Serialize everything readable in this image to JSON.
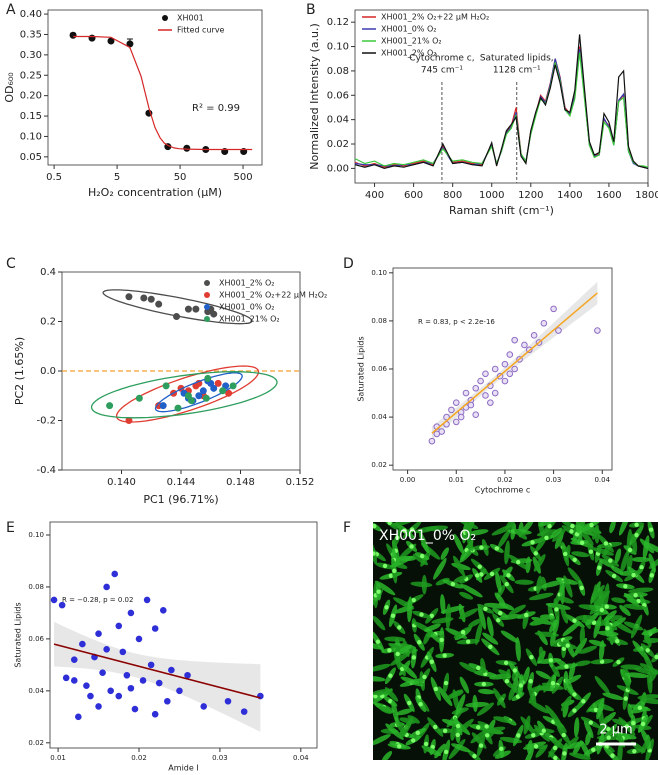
{
  "chart_data": [
    {
      "type": "scatter",
      "panel": "A",
      "xlabel": "H₂O₂ concentration (μM)",
      "ylabel": "OD₆₀₀",
      "log_x": true,
      "xlim": [
        0.4,
        1000
      ],
      "xticks": [
        0.5,
        5,
        50,
        500
      ],
      "ylim": [
        0.03,
        0.41
      ],
      "yticks": [
        0.05,
        {
          "value": 0.1,
          "label": "0.10"
        },
        0.15,
        {
          "value": 0.2,
          "label": "0.20"
        },
        0.25,
        {
          "value": 0.3,
          "label": "0.30"
        },
        0.35,
        {
          "value": 0.4,
          "label": "0.40"
        }
      ],
      "annotations": [
        {
          "text": "R² = 0.99"
        }
      ],
      "series": [
        {
          "name": "XH001",
          "type": "scatter",
          "color": "#111111",
          "x": [
            1,
            2,
            4,
            8,
            16,
            32,
            64,
            128,
            256,
            512
          ],
          "values": [
            0.348,
            0.341,
            0.334,
            0.327,
            0.157,
            0.075,
            0.071,
            0.068,
            0.063,
            0.063
          ],
          "errors": [
            0.005,
            0.004,
            0.003,
            0.012,
            0.004,
            0.002,
            0.002,
            0.002,
            0.002,
            0.002
          ]
        },
        {
          "name": "Fitted curve",
          "type": "line",
          "color": "#d62728",
          "x": [
            1,
            2,
            4,
            8,
            12,
            16,
            20,
            24,
            28,
            32,
            40,
            48,
            64,
            128,
            256,
            512,
            700
          ],
          "values": [
            0.345,
            0.345,
            0.343,
            0.318,
            0.248,
            0.17,
            0.122,
            0.097,
            0.084,
            0.078,
            0.072,
            0.07,
            0.069,
            0.068,
            0.068,
            0.068,
            0.068
          ]
        }
      ]
    },
    {
      "type": "line",
      "panel": "B",
      "xlabel": "Raman shift (cm⁻¹)",
      "ylabel": "Normalized Intensity (a.u.)",
      "xlim": [
        300,
        1800
      ],
      "xticks": [
        400,
        600,
        800,
        1000,
        1200,
        1400,
        1600,
        1800
      ],
      "ylim": [
        -0.012,
        0.13
      ],
      "yticks": [
        {
          "value": 0,
          "label": "0.00"
        },
        0.02,
        0.04,
        0.06,
        0.08,
        {
          "value": 0.1,
          "label": "0.10"
        },
        0.12
      ],
      "annotations": [
        {
          "text": [
            "Cytochrome c,",
            "745 cm⁻¹"
          ],
          "x": 745
        },
        {
          "text": [
            "Saturated lipids,",
            "1128 cm⁻¹"
          ],
          "x": 1128
        }
      ],
      "x": [
        300,
        350,
        400,
        450,
        500,
        550,
        600,
        650,
        700,
        750,
        800,
        850,
        900,
        950,
        1000,
        1025,
        1050,
        1075,
        1100,
        1125,
        1150,
        1175,
        1200,
        1225,
        1250,
        1275,
        1300,
        1325,
        1350,
        1375,
        1400,
        1425,
        1450,
        1475,
        1500,
        1525,
        1550,
        1575,
        1600,
        1625,
        1650,
        1675,
        1700,
        1725,
        1750,
        1775,
        1800
      ],
      "series": [
        {
          "name": "XH001_2% O₂+22 μM H₂O₂",
          "color": "#d62728",
          "values": [
            0.005,
            0.002,
            0.004,
            0.001,
            0.003,
            0.002,
            0.004,
            0.006,
            0.003,
            0.018,
            0.005,
            0.006,
            0.004,
            0.003,
            0.02,
            0.003,
            0.015,
            0.03,
            0.035,
            0.05,
            0.012,
            0.005,
            0.03,
            0.045,
            0.06,
            0.055,
            0.07,
            0.09,
            0.075,
            0.05,
            0.045,
            0.06,
            0.1,
            0.06,
            0.02,
            0.01,
            0.012,
            0.04,
            0.035,
            0.02,
            0.055,
            0.06,
            0.015,
            0.005,
            0.002,
            0.001,
            0
          ]
        },
        {
          "name": "XH001_0% O₂",
          "color": "#3a3ab0",
          "values": [
            0.004,
            0.003,
            0.003,
            0.002,
            0.002,
            0.003,
            0.003,
            0.005,
            0.004,
            0.017,
            0.004,
            0.005,
            0.003,
            0.004,
            0.019,
            0.004,
            0.014,
            0.029,
            0.034,
            0.046,
            0.011,
            0.006,
            0.029,
            0.044,
            0.059,
            0.054,
            0.069,
            0.09,
            0.074,
            0.049,
            0.044,
            0.059,
            0.098,
            0.059,
            0.019,
            0.01,
            0.011,
            0.041,
            0.034,
            0.019,
            0.056,
            0.061,
            0.014,
            0.004,
            0.002,
            0.001,
            0
          ]
        },
        {
          "name": "XH001_21% O₂",
          "color": "#3cc83c",
          "values": [
            0.008,
            0.004,
            0.006,
            0.002,
            0.004,
            0.003,
            0.005,
            0.007,
            0.004,
            0.016,
            0.006,
            0.007,
            0.005,
            0.004,
            0.018,
            0.004,
            0.014,
            0.028,
            0.033,
            0.044,
            0.012,
            0.006,
            0.028,
            0.043,
            0.057,
            0.053,
            0.067,
            0.087,
            0.072,
            0.048,
            0.043,
            0.057,
            0.095,
            0.057,
            0.019,
            0.009,
            0.011,
            0.038,
            0.033,
            0.019,
            0.055,
            0.058,
            0.014,
            0.005,
            0.002,
            0.002,
            0.001
          ]
        },
        {
          "name": "XH001_2% O₂",
          "color": "#111111",
          "values": [
            0.003,
            0.001,
            0.003,
            0,
            0.002,
            0.001,
            0.003,
            0.005,
            0.002,
            0.02,
            0.004,
            0.005,
            0.003,
            0.002,
            0.021,
            0.002,
            0.016,
            0.031,
            0.036,
            0.042,
            0.01,
            0.004,
            0.031,
            0.046,
            0.058,
            0.052,
            0.066,
            0.085,
            0.07,
            0.048,
            0.046,
            0.064,
            0.11,
            0.065,
            0.022,
            0.011,
            0.013,
            0.045,
            0.038,
            0.022,
            0.075,
            0.08,
            0.018,
            0.006,
            0.002,
            0.001,
            0
          ]
        }
      ]
    },
    {
      "type": "scatter",
      "panel": "C",
      "xlabel": "PC1 (96.71%)",
      "ylabel": "PC2 (1.65%)",
      "ellipse": true,
      "hline": 0,
      "xlim": [
        0.136,
        0.152
      ],
      "xticks": [
        {
          "value": 0.14,
          "label": "0.140"
        },
        0.144,
        0.148,
        0.152
      ],
      "ylim": [
        -0.4,
        0.4
      ],
      "yticks": [
        -0.4,
        -0.2,
        {
          "value": 0,
          "label": "0.0"
        },
        0.2,
        0.4
      ],
      "series": [
        {
          "name": "XH001_2% O₂",
          "color": "#4d4d4d",
          "x": [
            0.1405,
            0.1415,
            0.1425,
            0.142,
            0.1445,
            0.145,
            0.1458,
            0.1462,
            0.146,
            0.1437
          ],
          "values": [
            0.3,
            0.295,
            0.27,
            0.29,
            0.25,
            0.25,
            0.24,
            0.23,
            0.25,
            0.22
          ]
        },
        {
          "name": "XH001_2% O₂+22 μM H₂O₂",
          "color": "#e03c31",
          "x": [
            0.1405,
            0.1425,
            0.1435,
            0.144,
            0.145,
            0.1455,
            0.1445,
            0.1465,
            0.1472,
            0.1452
          ],
          "values": [
            -0.2,
            -0.14,
            -0.09,
            -0.07,
            -0.06,
            -0.1,
            -0.08,
            -0.05,
            -0.09,
            -0.05
          ]
        },
        {
          "name": "XH001_0% O₂",
          "color": "#2060c8",
          "x": [
            0.1428,
            0.1448,
            0.1455,
            0.146,
            0.1452,
            0.1445,
            0.1462,
            0.1458,
            0.147,
            0.1442
          ],
          "values": [
            -0.14,
            -0.12,
            -0.08,
            -0.05,
            -0.1,
            -0.11,
            -0.07,
            -0.04,
            -0.06,
            -0.09
          ]
        },
        {
          "name": "XH001_21% O₂",
          "color": "#2e9e5e",
          "x": [
            0.1392,
            0.1412,
            0.143,
            0.1438,
            0.1445,
            0.1457,
            0.1458,
            0.1468,
            0.1475,
            0.1447
          ],
          "values": [
            -0.14,
            -0.11,
            -0.06,
            -0.15,
            -0.1,
            -0.11,
            -0.03,
            -0.08,
            -0.06,
            -0.12
          ]
        }
      ]
    },
    {
      "type": "scatter",
      "panel": "D",
      "xlabel": "Cytochrome c",
      "ylabel": "Saturated Lipids",
      "fit": "linear",
      "fit_color": "#f5a623",
      "annotations": [
        {
          "text": "R = 0.83, p < 2.2e-16"
        }
      ],
      "xlim": [
        -0.003,
        0.042
      ],
      "xticks": [
        {
          "value": 0,
          "label": "0.00"
        },
        0.01,
        0.02,
        0.03,
        0.04
      ],
      "ylim": [
        0.018,
        0.102
      ],
      "yticks": [
        0.02,
        0.04,
        0.06,
        0.08,
        {
          "value": 0.1,
          "label": "0.10"
        }
      ],
      "series": [
        {
          "color": "#8e6cc4",
          "marker": "open",
          "x": [
            0.005,
            0.006,
            0.007,
            0.008,
            0.009,
            0.01,
            0.01,
            0.011,
            0.012,
            0.012,
            0.013,
            0.014,
            0.014,
            0.015,
            0.016,
            0.016,
            0.017,
            0.018,
            0.018,
            0.019,
            0.02,
            0.02,
            0.021,
            0.022,
            0.022,
            0.023,
            0.024,
            0.025,
            0.026,
            0.028,
            0.03,
            0.031,
            0.039,
            0.006,
            0.008,
            0.011,
            0.013,
            0.017,
            0.021,
            0.027
          ],
          "values": [
            0.03,
            0.036,
            0.034,
            0.04,
            0.043,
            0.038,
            0.046,
            0.042,
            0.05,
            0.044,
            0.047,
            0.052,
            0.041,
            0.055,
            0.049,
            0.058,
            0.053,
            0.05,
            0.06,
            0.057,
            0.062,
            0.055,
            0.066,
            0.06,
            0.072,
            0.064,
            0.07,
            0.068,
            0.074,
            0.079,
            0.085,
            0.076,
            0.076,
            0.033,
            0.037,
            0.04,
            0.045,
            0.046,
            0.058,
            0.071
          ]
        }
      ]
    },
    {
      "type": "scatter",
      "panel": "E",
      "xlabel": "Amide I",
      "ylabel": "Saturated Lipids",
      "fit": "linear",
      "fit_color": "#8b0000",
      "annotations": [
        {
          "text": "R = −0.28, p = 0.02"
        }
      ],
      "xlim": [
        0.009,
        0.042
      ],
      "xticks": [
        0.01,
        0.02,
        0.03,
        0.04
      ],
      "ylim": [
        0.018,
        0.105
      ],
      "yticks": [
        0.02,
        0.04,
        0.06,
        0.08,
        {
          "value": 0.1,
          "label": "0.10"
        }
      ],
      "series": [
        {
          "color": "#2f2fd8",
          "x": [
            0.0095,
            0.0105,
            0.011,
            0.012,
            0.0125,
            0.013,
            0.0135,
            0.014,
            0.0145,
            0.015,
            0.015,
            0.0155,
            0.016,
            0.0165,
            0.017,
            0.0175,
            0.0175,
            0.018,
            0.0185,
            0.019,
            0.0195,
            0.02,
            0.0205,
            0.021,
            0.0215,
            0.022,
            0.0225,
            0.023,
            0.0235,
            0.024,
            0.025,
            0.026,
            0.028,
            0.031,
            0.033,
            0.035,
            0.012,
            0.016,
            0.019,
            0.022
          ],
          "values": [
            0.075,
            0.073,
            0.045,
            0.052,
            0.03,
            0.058,
            0.042,
            0.038,
            0.053,
            0.034,
            0.062,
            0.047,
            0.08,
            0.04,
            0.085,
            0.065,
            0.038,
            0.055,
            0.046,
            0.07,
            0.033,
            0.06,
            0.044,
            0.075,
            0.05,
            0.064,
            0.043,
            0.071,
            0.036,
            0.048,
            0.04,
            0.046,
            0.034,
            0.036,
            0.032,
            0.038,
            0.044,
            0.056,
            0.041,
            0.031
          ]
        }
      ]
    },
    {
      "type": "image",
      "panel": "F",
      "label": "XH001_0% O₂",
      "scale_bar": "2 μm"
    }
  ]
}
